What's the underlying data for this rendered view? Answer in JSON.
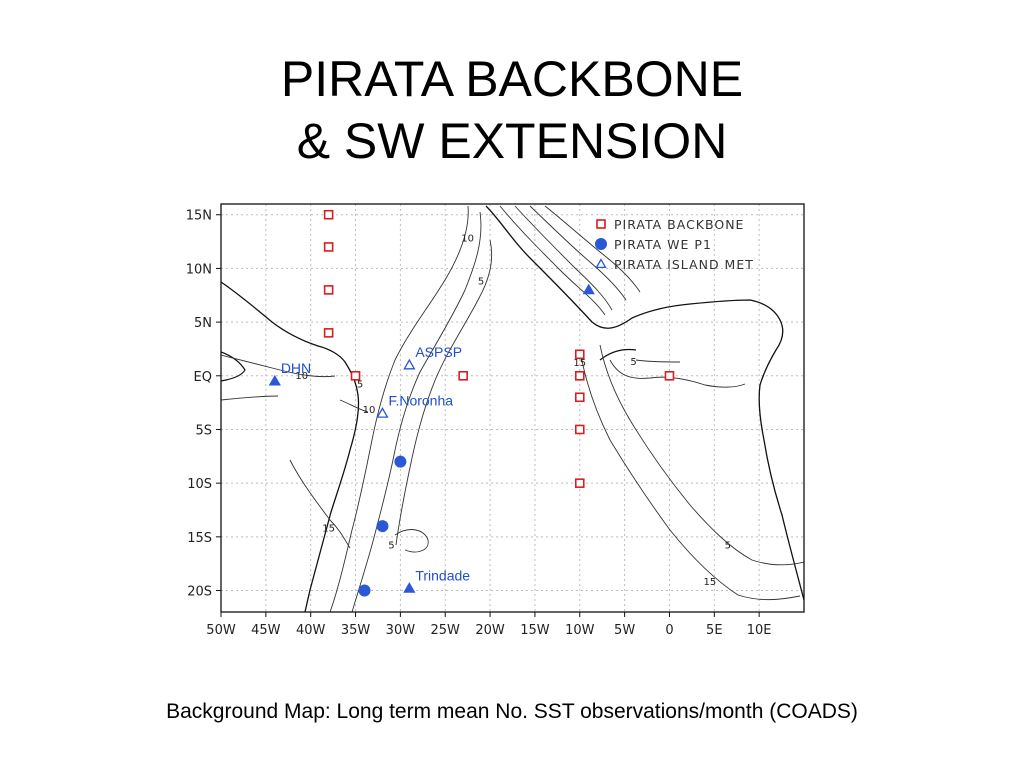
{
  "title": {
    "line1": "PIRATA BACKBONE",
    "line2": "& SW EXTENSION"
  },
  "caption": "Background Map: Long term mean No. SST observations/month (COADS)",
  "colors": {
    "backbone": "#d42020",
    "we_p1": "#2a58d6",
    "island": "#2a58d6",
    "grid": "#bdbdbd",
    "coast": "#111111",
    "contour": "#333333"
  },
  "map": {
    "lon_range": [
      -50,
      15
    ],
    "lat_range": [
      -22,
      16
    ],
    "lon_ticks": [
      {
        "value": -50,
        "label": "50W"
      },
      {
        "value": -45,
        "label": "45W"
      },
      {
        "value": -40,
        "label": "40W"
      },
      {
        "value": -35,
        "label": "35W"
      },
      {
        "value": -30,
        "label": "30W"
      },
      {
        "value": -25,
        "label": "25W"
      },
      {
        "value": -20,
        "label": "20W"
      },
      {
        "value": -15,
        "label": "15W"
      },
      {
        "value": -10,
        "label": "10W"
      },
      {
        "value": -5,
        "label": "5W"
      },
      {
        "value": 0,
        "label": "0"
      },
      {
        "value": 5,
        "label": "5E"
      },
      {
        "value": 10,
        "label": "10E"
      }
    ],
    "lat_ticks": [
      {
        "value": 15,
        "label": "15N"
      },
      {
        "value": 10,
        "label": "10N"
      },
      {
        "value": 5,
        "label": "5N"
      },
      {
        "value": 0,
        "label": "EQ"
      },
      {
        "value": -5,
        "label": "5S"
      },
      {
        "value": -10,
        "label": "10S"
      },
      {
        "value": -15,
        "label": "15S"
      },
      {
        "value": -20,
        "label": "20S"
      }
    ],
    "legend": [
      {
        "symbol": "square",
        "label": "PIRATA BACKBONE"
      },
      {
        "symbol": "circle",
        "label": "PIRATA WE P1"
      },
      {
        "symbol": "triangle-open",
        "label": "PIRATA ISLAND MET"
      }
    ],
    "backbone_sites": [
      {
        "lon": -38,
        "lat": 15
      },
      {
        "lon": -38,
        "lat": 12
      },
      {
        "lon": -38,
        "lat": 8
      },
      {
        "lon": -38,
        "lat": 4
      },
      {
        "lon": -35,
        "lat": 0
      },
      {
        "lon": -23,
        "lat": 0
      },
      {
        "lon": -10,
        "lat": 2
      },
      {
        "lon": -10,
        "lat": 0
      },
      {
        "lon": -10,
        "lat": -2
      },
      {
        "lon": -10,
        "lat": -5
      },
      {
        "lon": -10,
        "lat": -10
      },
      {
        "lon": 0,
        "lat": 0
      }
    ],
    "we_p1_sites": [
      {
        "lon": -30,
        "lat": -8
      },
      {
        "lon": -32,
        "lat": -14
      },
      {
        "lon": -34,
        "lat": -20
      }
    ],
    "island_sites": [
      {
        "lon": -29,
        "lat": 1,
        "filled": false,
        "label": "ASPSP"
      },
      {
        "lon": -32,
        "lat": -3.5,
        "filled": false,
        "label": "F.Noronha"
      },
      {
        "lon": -44,
        "lat": -0.5,
        "filled": true,
        "label": "DHN"
      },
      {
        "lon": -29,
        "lat": -19.8,
        "filled": true,
        "label": "Trindade"
      },
      {
        "lon": -9,
        "lat": 8,
        "filled": true,
        "label": ""
      }
    ],
    "contour_labels": [
      {
        "lon": -22.5,
        "lat": 12.8,
        "text": "10"
      },
      {
        "lon": -21,
        "lat": 8.8,
        "text": "5"
      },
      {
        "lon": -41,
        "lat": 0,
        "text": "10"
      },
      {
        "lon": -34.5,
        "lat": -0.8,
        "text": "5"
      },
      {
        "lon": -33.5,
        "lat": -3.2,
        "text": "10"
      },
      {
        "lon": -4,
        "lat": 1.3,
        "text": "5"
      },
      {
        "lon": -10,
        "lat": 1.2,
        "text": "15"
      },
      {
        "lon": -38,
        "lat": -14.2,
        "text": "15"
      },
      {
        "lon": -31,
        "lat": -15.8,
        "text": "5"
      },
      {
        "lon": 6.5,
        "lat": -15.8,
        "text": "5"
      },
      {
        "lon": 4.5,
        "lat": -19.2,
        "text": "15"
      }
    ]
  }
}
